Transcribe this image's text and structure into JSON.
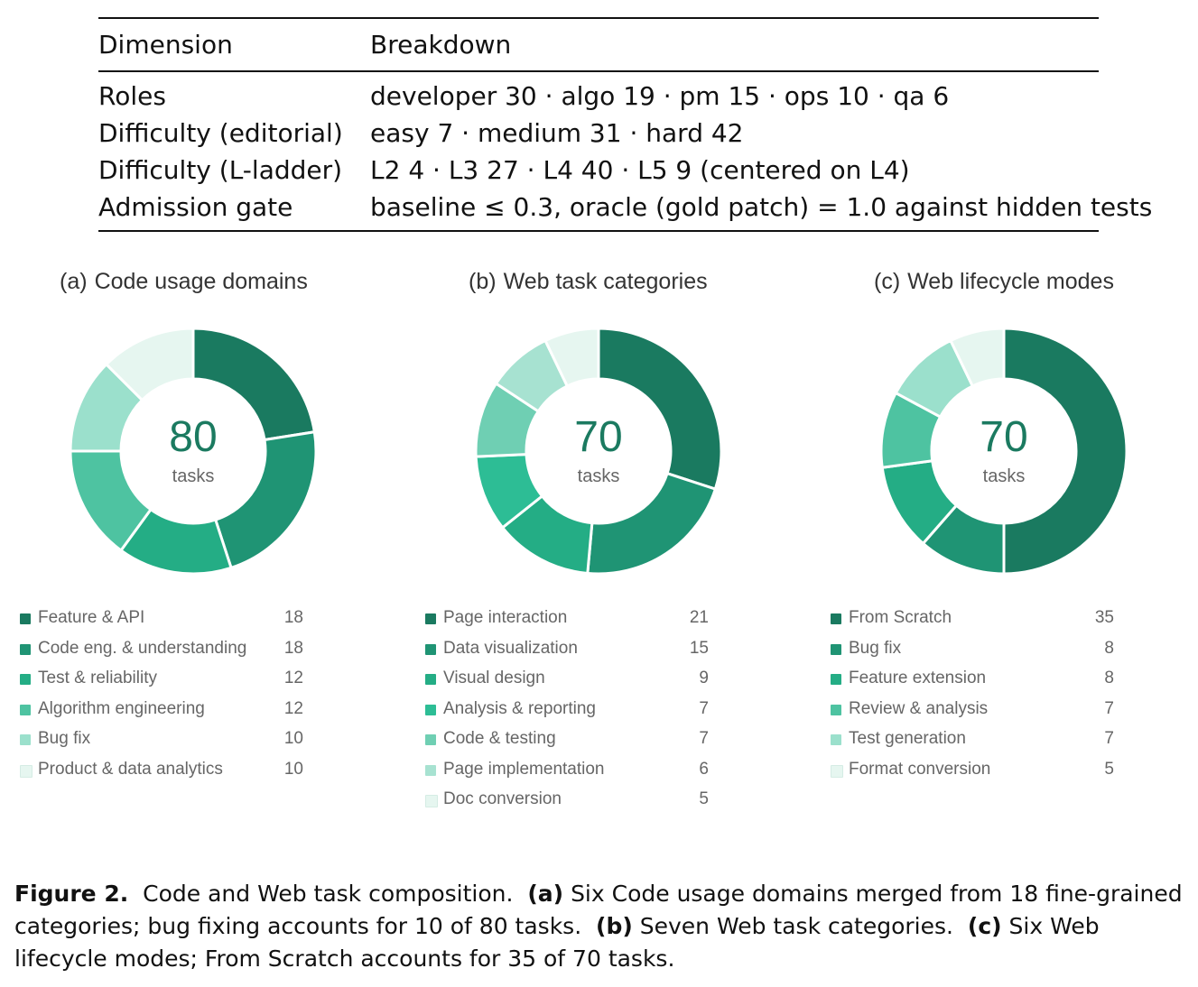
{
  "table": {
    "headers": [
      "Dimension",
      "Breakdown"
    ],
    "rows": [
      {
        "dimension": "Roles",
        "breakdown": "developer 30 · algo 19 · pm 15 · ops 10 · qa 6"
      },
      {
        "dimension": "Difficulty (editorial)",
        "breakdown": "easy 7 · medium 31 · hard 42"
      },
      {
        "dimension": "Difficulty (L-ladder)",
        "breakdown": "L2 4 · L3 27 · L4 40 · L5 9 (centered on L4)"
      },
      {
        "dimension": "Admission gate",
        "breakdown": "baseline ≤ 0.3, oracle (gold patch) = 1.0 against hidden tests"
      }
    ]
  },
  "chart_data": [
    {
      "type": "pie",
      "panel_label": "(a)",
      "title": "Code usage domains",
      "center_value": "80",
      "center_label": "tasks",
      "categories": [
        "Feature & API",
        "Code eng. & understanding",
        "Test & reliability",
        "Algorithm engineering",
        "Bug fix",
        "Product & data analytics"
      ],
      "values": [
        18,
        18,
        12,
        12,
        10,
        10
      ],
      "colors": [
        "#1a7a60",
        "#1f9474",
        "#24ad85",
        "#4ec3a1",
        "#9be0cc",
        "#e6f6f0"
      ]
    },
    {
      "type": "pie",
      "panel_label": "(b)",
      "title": "Web task categories",
      "center_value": "70",
      "center_label": "tasks",
      "categories": [
        "Page interaction",
        "Data visualization",
        "Visual design",
        "Analysis & reporting",
        "Code & testing",
        "Page implementation",
        "Doc conversion"
      ],
      "values": [
        21,
        15,
        9,
        7,
        7,
        6,
        5
      ],
      "colors": [
        "#1a7a60",
        "#1f9474",
        "#24ad85",
        "#2dbd95",
        "#6fcfb3",
        "#a7e2d1",
        "#e6f6f0"
      ]
    },
    {
      "type": "pie",
      "panel_label": "(c)",
      "title": "Web lifecycle modes",
      "center_value": "70",
      "center_label": "tasks",
      "categories": [
        "From Scratch",
        "Bug fix",
        "Feature extension",
        "Review & analysis",
        "Test generation",
        "Format conversion"
      ],
      "values": [
        35,
        8,
        8,
        7,
        7,
        5
      ],
      "colors": [
        "#1a7a60",
        "#1f9474",
        "#24ad85",
        "#4ec3a1",
        "#9be0cc",
        "#e6f6f0"
      ]
    }
  ],
  "caption": {
    "figure_label": "Figure 2.",
    "intro": "Code and Web task composition.",
    "a_label": "(a)",
    "a_text": "Six Code usage domains merged from 18 fine-grained categories; bug fixing accounts for 10 of 80 tasks.",
    "b_label": "(b)",
    "b_text": "Seven Web task categories.",
    "c_label": "(c)",
    "c_text": "Six Web lifecycle modes; From Scratch accounts for 35 of 70 tasks."
  }
}
